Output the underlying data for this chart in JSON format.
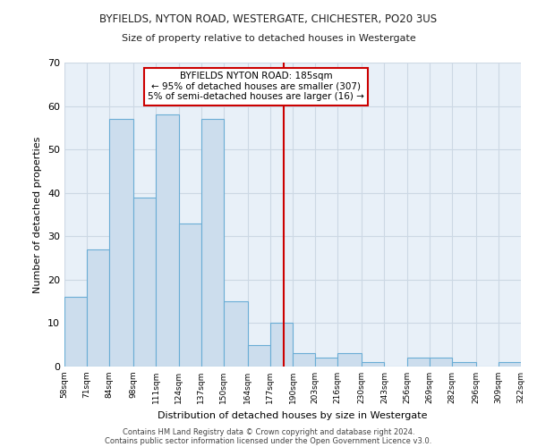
{
  "title1": "BYFIELDS, NYTON ROAD, WESTERGATE, CHICHESTER, PO20 3US",
  "title2": "Size of property relative to detached houses in Westergate",
  "xlabel": "Distribution of detached houses by size in Westergate",
  "ylabel": "Number of detached properties",
  "bar_color": "#ccdded",
  "bar_edge_color": "#6aadd5",
  "grid_color": "#ccd8e4",
  "bg_color": "#e8f0f8",
  "fig_color": "#ffffff",
  "annotation_text": "BYFIELDS NYTON ROAD: 185sqm\n← 95% of detached houses are smaller (307)\n5% of semi-detached houses are larger (16) →",
  "vline_x": 185,
  "vline_color": "#cc0000",
  "annotation_box_color": "#cc0000",
  "bin_edges": [
    58,
    71,
    84,
    98,
    111,
    124,
    137,
    150,
    164,
    177,
    190,
    203,
    216,
    230,
    243,
    256,
    269,
    282,
    296,
    309,
    322
  ],
  "bar_heights": [
    16,
    27,
    57,
    39,
    58,
    33,
    57,
    15,
    5,
    10,
    3,
    2,
    3,
    1,
    0,
    2,
    2,
    1,
    0,
    1
  ],
  "tick_labels": [
    "58sqm",
    "71sqm",
    "84sqm",
    "98sqm",
    "111sqm",
    "124sqm",
    "137sqm",
    "150sqm",
    "164sqm",
    "177sqm",
    "190sqm",
    "203sqm",
    "216sqm",
    "230sqm",
    "243sqm",
    "256sqm",
    "269sqm",
    "282sqm",
    "296sqm",
    "309sqm",
    "322sqm"
  ],
  "ylim": [
    0,
    70
  ],
  "yticks": [
    0,
    10,
    20,
    30,
    40,
    50,
    60,
    70
  ],
  "footer1": "Contains HM Land Registry data © Crown copyright and database right 2024.",
  "footer2": "Contains public sector information licensed under the Open Government Licence v3.0."
}
